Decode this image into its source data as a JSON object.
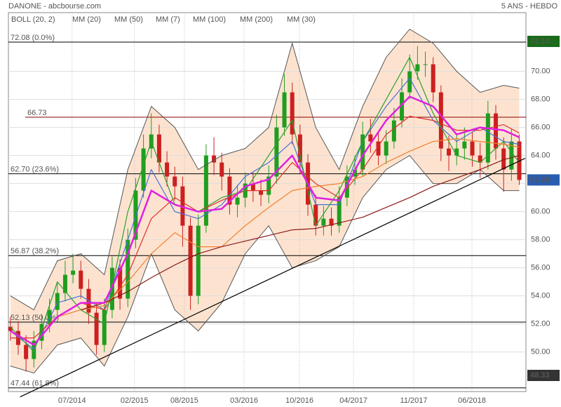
{
  "chart_data": {
    "type": "candlestick",
    "title": "DANONE - abcbourse.com",
    "subtitle": "5 ANS - HEBDO",
    "xlim": [
      -1,
      263.4
    ],
    "ylim": [
      47.18,
      74.18
    ],
    "xticks": [
      {
        "value": 31.5,
        "label": "07/2014"
      },
      {
        "value": 63.4,
        "label": "02/2015"
      },
      {
        "value": 88.9,
        "label": "08/2015"
      },
      {
        "value": 119.4,
        "label": "03/2016"
      },
      {
        "value": 147.7,
        "label": "10/2016"
      },
      {
        "value": 175.3,
        "label": "04/2017"
      },
      {
        "value": 206.1,
        "label": "11/2017"
      },
      {
        "value": 235.8,
        "label": "06/2018"
      }
    ],
    "yticks": [
      {
        "value": 50,
        "label": "50.00"
      },
      {
        "value": 52,
        "label": "52.00"
      },
      {
        "value": 54,
        "label": "54.00"
      },
      {
        "value": 56,
        "label": "56.00"
      },
      {
        "value": 58,
        "label": "58.00"
      },
      {
        "value": 60,
        "label": "60.00"
      },
      {
        "value": 62,
        "label": "62.00"
      },
      {
        "value": 64,
        "label": "64.00"
      },
      {
        "value": 66,
        "label": "66.00"
      },
      {
        "value": 68,
        "label": "68.00"
      },
      {
        "value": 70,
        "label": "70.00"
      }
    ],
    "grid": true,
    "up_color": "#1f9e1f",
    "down_color": "#cc2020",
    "candles": {
      "x": [
        0,
        4,
        8,
        12,
        16,
        20,
        24,
        28,
        32,
        36,
        40,
        44,
        48,
        52,
        56,
        60,
        64,
        68,
        72,
        76,
        80,
        84,
        88,
        92,
        96,
        100,
        104,
        108,
        112,
        116,
        120,
        124,
        128,
        132,
        136,
        140,
        144,
        148,
        152,
        156,
        160,
        164,
        168,
        172,
        176,
        180,
        184,
        188,
        192,
        196,
        200,
        204,
        208,
        212,
        216,
        220,
        224,
        228,
        232,
        236,
        240,
        244,
        248,
        252,
        256,
        260
      ],
      "open": [
        51.8,
        51.5,
        50.5,
        49.5,
        50.8,
        52,
        53,
        54.2,
        55.5,
        55.8,
        54.5,
        52.8,
        50.5,
        53,
        56,
        53.8,
        58,
        61.5,
        64.5,
        65.5,
        63.5,
        62.5,
        61.8,
        59,
        54,
        59,
        64,
        63.5,
        62.5,
        60.5,
        61,
        62,
        61.5,
        61.2,
        62.5,
        66,
        68.5,
        65.5,
        63.5,
        60.5,
        59,
        59.5,
        59,
        61,
        62.5,
        63,
        65.5,
        65,
        64,
        65,
        66.5,
        68.5,
        70,
        70.5,
        70.5,
        68.5,
        64.5,
        64,
        64.5,
        65,
        64,
        63.5,
        67,
        64.5,
        63,
        65
      ],
      "high": [
        52.5,
        52.2,
        51.2,
        51.5,
        52.7,
        53.8,
        55,
        56.5,
        57,
        56.5,
        55.2,
        53.5,
        53.8,
        56.8,
        56.6,
        58.8,
        62.4,
        65.5,
        67,
        66.2,
        64.3,
        63.2,
        62.5,
        59.6,
        59.8,
        64.8,
        65.3,
        64.2,
        63.1,
        61.9,
        62.8,
        62.8,
        62.3,
        63.3,
        66.9,
        69.8,
        69.2,
        66.2,
        64.1,
        61.2,
        60.4,
        60.3,
        61.8,
        63.3,
        64,
        66.4,
        66.6,
        65.7,
        65.8,
        67.4,
        69.5,
        71.2,
        71.8,
        71.4,
        71,
        69,
        65.4,
        65.6,
        66,
        65.7,
        64.9,
        67.9,
        67.6,
        65.3,
        65.9,
        65.5
      ],
      "low": [
        50.8,
        49.8,
        48.6,
        48.9,
        50.2,
        51.4,
        52.4,
        53.6,
        54.9,
        53.8,
        52,
        49.8,
        50,
        52.4,
        53,
        53.2,
        57.4,
        61,
        63.8,
        62.8,
        61.8,
        60.8,
        57.5,
        53,
        53.4,
        58.5,
        62.6,
        61.5,
        59.8,
        59.6,
        60.3,
        60.7,
        60.4,
        60.6,
        62,
        65.4,
        64.8,
        62.7,
        59.7,
        58.3,
        58.3,
        58.3,
        58.5,
        60.4,
        61.9,
        62.5,
        64.2,
        63.3,
        63.4,
        64.5,
        66,
        68,
        69.4,
        69.6,
        67.8,
        63.6,
        62.9,
        63.3,
        63.7,
        63.2,
        62.4,
        63,
        63.7,
        61.4,
        62.2,
        61.9
      ],
      "close": [
        51.5,
        50.5,
        49.5,
        50.8,
        52,
        53,
        54.2,
        55.5,
        55.8,
        54.5,
        52.8,
        50.5,
        53,
        56,
        53.8,
        58,
        61.5,
        64.5,
        65.5,
        63.5,
        62.5,
        61.8,
        59,
        54,
        59,
        64,
        63.5,
        62.5,
        60.5,
        61,
        62,
        61.5,
        61.2,
        62.5,
        66,
        68.5,
        65.5,
        63.5,
        60.5,
        59,
        59.5,
        59,
        61,
        62.5,
        63,
        65.5,
        65,
        64,
        65,
        66.5,
        68.5,
        70,
        70.5,
        70.5,
        68.5,
        64.5,
        64,
        64.5,
        65,
        64,
        63.5,
        67,
        64.5,
        63,
        65,
        62.26
      ]
    },
    "ma_x": [
      0,
      12,
      24,
      36,
      48,
      60,
      72,
      84,
      96,
      108,
      120,
      132,
      144,
      156,
      168,
      180,
      192,
      204,
      216,
      228,
      240,
      252,
      260
    ],
    "bollinger": {
      "name": "BOLL (20, 2)",
      "color": "#555555",
      "fill": "#fde3cf",
      "upper": [
        54,
        53,
        56.5,
        57,
        55.5,
        63,
        67.5,
        66,
        63,
        64,
        64.5,
        66,
        72,
        66,
        63,
        67.5,
        71,
        73,
        72,
        70,
        68.5,
        69,
        68.8
      ],
      "lower": [
        49,
        48.5,
        50.5,
        51,
        49,
        52.5,
        57,
        53,
        51.5,
        53.5,
        57,
        59,
        56,
        56.5,
        57.5,
        61,
        63,
        64,
        62,
        62,
        63,
        61.5,
        61.5
      ]
    },
    "series": [
      {
        "name": "MM (20)",
        "color": "#4a6fd8",
        "values": [
          51.5,
          50.2,
          53.5,
          54,
          53,
          58,
          63,
          60,
          59.5,
          60.5,
          62.5,
          63.5,
          65,
          60.5,
          60.5,
          65,
          67.5,
          69.5,
          66.5,
          65,
          66,
          65,
          64.8
        ]
      },
      {
        "name": "MM (50)",
        "color": "#e03030",
        "values": [
          51,
          51,
          52.5,
          53.5,
          53,
          55.5,
          59.5,
          61,
          60,
          60.8,
          61.5,
          61.5,
          63.5,
          62,
          61,
          63,
          65.5,
          66.8,
          66.5,
          65.8,
          65.8,
          66.2,
          65.6
        ]
      },
      {
        "name": "MM (7)",
        "color": "#2ca02c",
        "values": [
          51.8,
          50,
          55,
          53,
          52,
          60,
          65,
          60.5,
          60,
          61,
          61.5,
          64,
          66.5,
          59,
          61.5,
          65,
          68,
          71,
          67,
          64,
          63.5,
          65,
          63.5
        ]
      },
      {
        "name": "MM (100)",
        "color": "#f08030",
        "values": [
          null,
          null,
          52.5,
          53,
          53.3,
          55,
          57,
          58.5,
          57.5,
          57.5,
          59,
          60.3,
          61.5,
          61.8,
          62,
          62.5,
          63.5,
          64.3,
          65,
          65.2,
          65,
          64.8,
          64.6
        ]
      },
      {
        "name": "MM (200)",
        "color": "#8b1a1a",
        "values": [
          null,
          null,
          null,
          53,
          53.5,
          54.3,
          55.3,
          56.2,
          57,
          57.5,
          57.9,
          58.3,
          58.7,
          58.8,
          59.2,
          59.6,
          60.3,
          61,
          61.8,
          62.4,
          63,
          63.7,
          64
        ]
      },
      {
        "name": "MM (30)",
        "color": "#e020e0",
        "values": [
          51.5,
          50.5,
          52.5,
          53.5,
          53.5,
          57,
          61.5,
          60.5,
          60,
          60.2,
          61.8,
          62.3,
          64,
          61,
          60.8,
          64,
          66.5,
          68.2,
          67.5,
          65.5,
          66,
          65.8,
          65.3
        ]
      }
    ],
    "levels": [
      {
        "value": 72.08,
        "label": "72.08 (0.0%)",
        "color": "#000000"
      },
      {
        "value": 66.73,
        "color": "#8b0000"
      },
      {
        "value": 62.7,
        "label": "62.70 (23.6%)",
        "color": "#000000"
      },
      {
        "value": 56.87,
        "label": "56.87 (38.2%)",
        "color": "#000000"
      },
      {
        "value": 52.13,
        "label": "52.13 (50.0%)",
        "color": "#000000"
      },
      {
        "value": 47.44,
        "label": "47.44 (61.8%)",
        "color": "#000000"
      }
    ],
    "trendline": {
      "x": [
        5,
        263
      ],
      "values": [
        46.8,
        63.8
      ],
      "color": "#000000"
    },
    "price_tags": [
      {
        "value": 72.13,
        "color": "#1a6b1a"
      },
      {
        "value": 62.26,
        "color": "#2a5db0"
      },
      {
        "value": 48.33,
        "color": "#333333"
      }
    ]
  }
}
